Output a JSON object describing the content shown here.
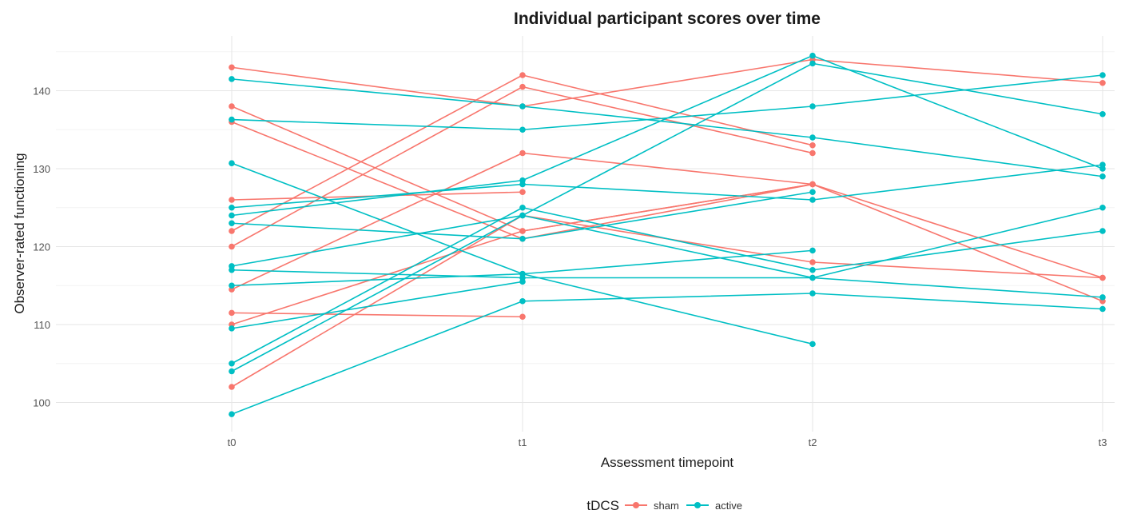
{
  "chart_data": {
    "type": "line",
    "title": "Individual participant scores over time",
    "xlabel": "Assessment timepoint",
    "ylabel": "Observer-rated functioning",
    "categories": [
      "t0",
      "t1",
      "t2",
      "t3"
    ],
    "ylim": [
      96,
      146
    ],
    "yticks": [
      100,
      110,
      120,
      130,
      140
    ],
    "grid": true,
    "legend": {
      "title": "tDCS",
      "placement": "bottom",
      "entries": [
        {
          "name": "sham",
          "color": "#F8766D"
        },
        {
          "name": "active",
          "color": "#00BFC4"
        }
      ]
    },
    "series": [
      {
        "group": "sham",
        "values": [
          143,
          138,
          144,
          141
        ]
      },
      {
        "group": "sham",
        "values": [
          138,
          122,
          128,
          113
        ]
      },
      {
        "group": "sham",
        "values": [
          136,
          121,
          128,
          116
        ]
      },
      {
        "group": "sham",
        "values": [
          126,
          127,
          null,
          null
        ]
      },
      {
        "group": "sham",
        "values": [
          122,
          142,
          133,
          null
        ]
      },
      {
        "group": "sham",
        "values": [
          120,
          140.5,
          132,
          null
        ]
      },
      {
        "group": "sham",
        "values": [
          114.5,
          132,
          128,
          null
        ]
      },
      {
        "group": "sham",
        "values": [
          111.5,
          111,
          null,
          null
        ]
      },
      {
        "group": "sham",
        "values": [
          110,
          122,
          128,
          null
        ]
      },
      {
        "group": "sham",
        "values": [
          102,
          124,
          118,
          116
        ]
      },
      {
        "group": "active",
        "values": [
          141.5,
          138,
          134,
          129
        ]
      },
      {
        "group": "active",
        "values": [
          136.3,
          135,
          138,
          142
        ]
      },
      {
        "group": "active",
        "values": [
          130.7,
          116.5,
          107.5,
          null
        ]
      },
      {
        "group": "active",
        "values": [
          125,
          128,
          126,
          130.5
        ]
      },
      {
        "group": "active",
        "values": [
          124,
          128.5,
          144.5,
          130
        ]
      },
      {
        "group": "active",
        "values": [
          123,
          121,
          127,
          null
        ]
      },
      {
        "group": "active",
        "values": [
          117.5,
          124,
          116,
          113.5
        ]
      },
      {
        "group": "active",
        "values": [
          117,
          116,
          116,
          125
        ]
      },
      {
        "group": "active",
        "values": [
          115,
          116.5,
          119.5,
          null
        ]
      },
      {
        "group": "active",
        "values": [
          109.5,
          115.5,
          null,
          null
        ]
      },
      {
        "group": "active",
        "values": [
          105,
          125,
          117,
          122
        ]
      },
      {
        "group": "active",
        "values": [
          104,
          124,
          143.5,
          137
        ]
      },
      {
        "group": "active",
        "values": [
          98.5,
          113,
          114,
          112
        ]
      }
    ]
  }
}
